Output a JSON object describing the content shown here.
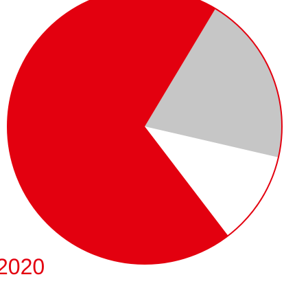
{
  "chart_data": {
    "type": "pie",
    "title": "",
    "start_angle_deg": -59,
    "direction": "clockwise",
    "slices": [
      {
        "value": 20,
        "color": "#c6c6c6"
      },
      {
        "value": 11,
        "color": "#ffffff"
      },
      {
        "value": 69,
        "color": "#e3000f"
      }
    ],
    "outline_color": "#e3000f"
  },
  "label": {
    "year": "2020"
  }
}
